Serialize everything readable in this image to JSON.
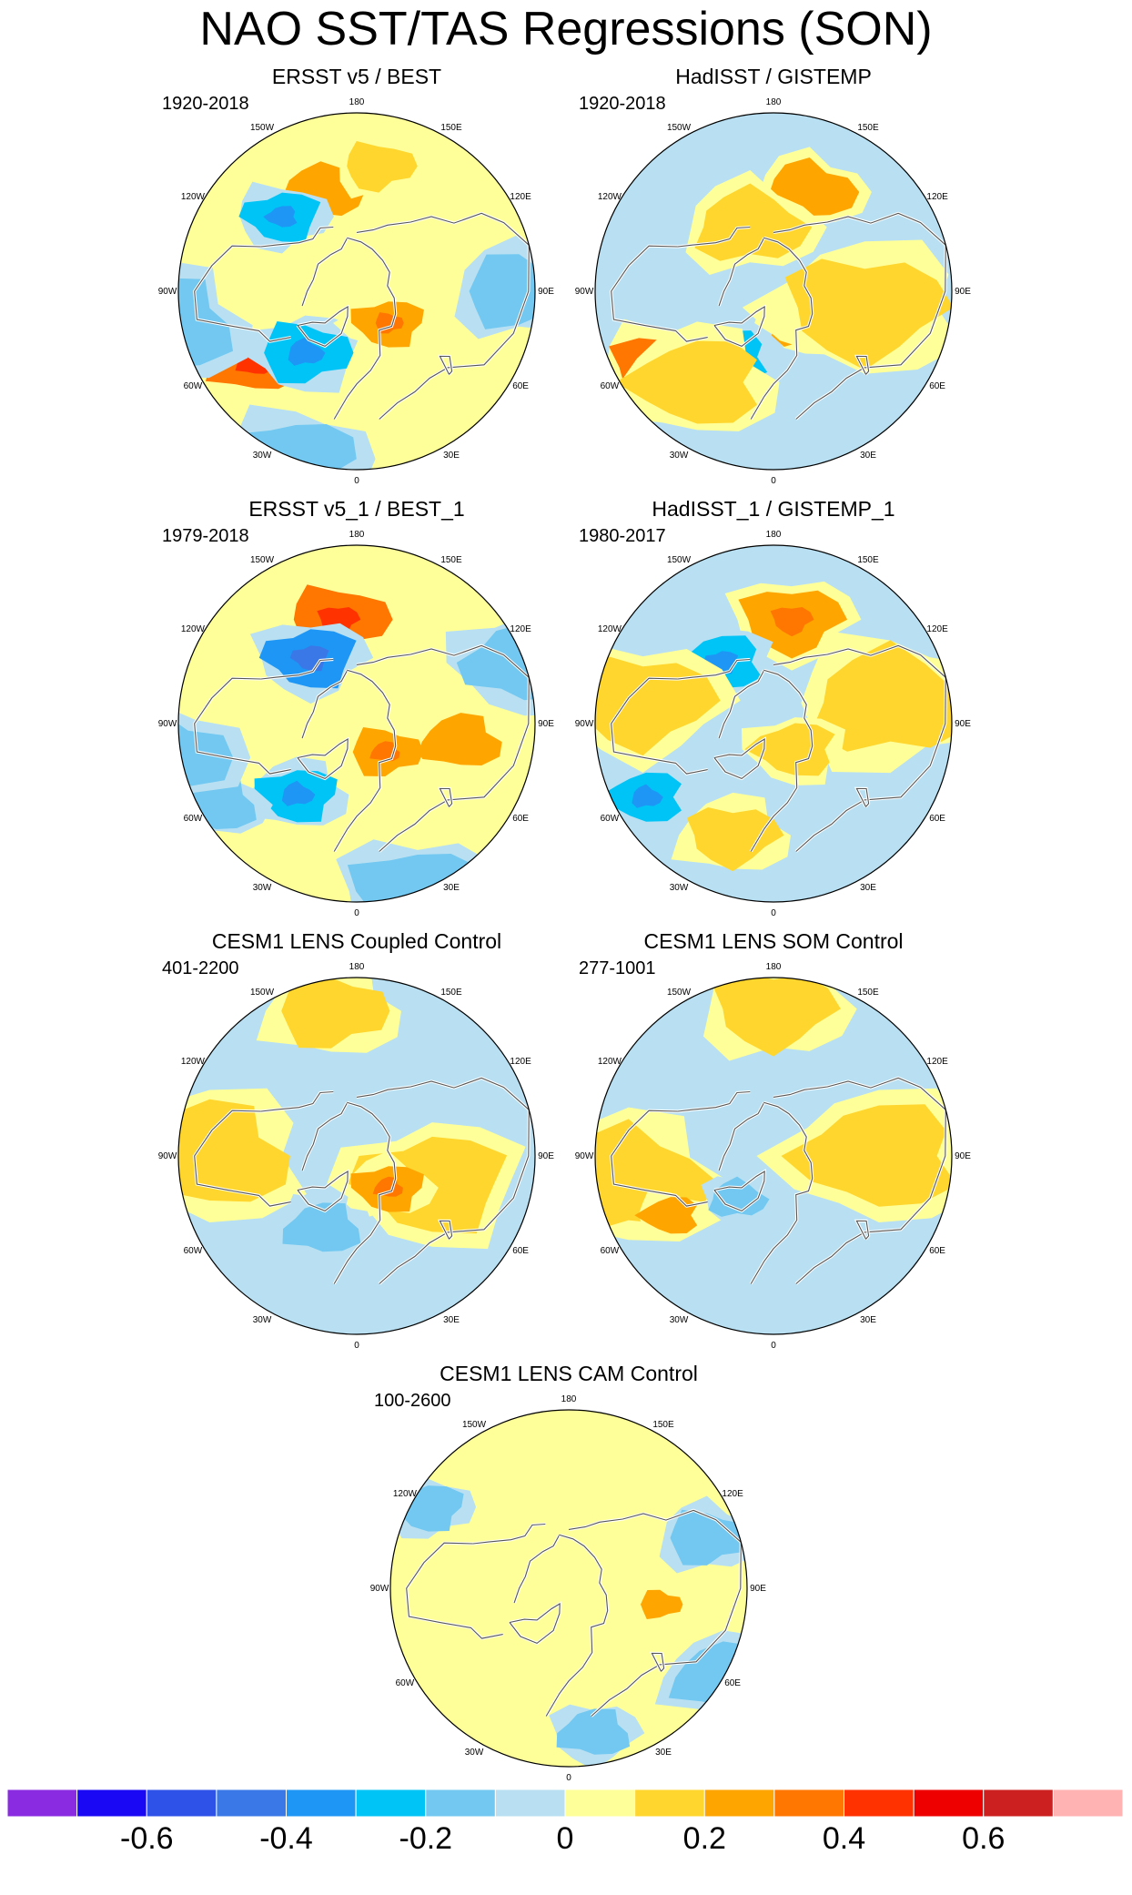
{
  "title": "NAO SST/TAS Regressions (SON)",
  "longitude_labels": [
    "180",
    "150E",
    "120E",
    "90E",
    "60E",
    "30E",
    "0",
    "30W",
    "60W",
    "90W",
    "120W",
    "150W"
  ],
  "colors": {
    "land_outline": "#555555",
    "frame": "#000000",
    "background_neutral_pos": "#ffff99",
    "background_neutral_neg": "#b8e0f2"
  },
  "chart_data": {
    "type": "heatmap",
    "projection": "north polar stereographic",
    "panels": [
      {
        "title": "ERSST v5 / BEST",
        "period": "1920-2018",
        "dominant_sign": "positive",
        "features": [
          {
            "lon": 200,
            "lat": 45,
            "value": 0.22,
            "size": 1.0
          },
          {
            "lon": 170,
            "lat": 37,
            "value": 0.18,
            "size": 0.8
          },
          {
            "lon": 225,
            "lat": 45,
            "value": -0.25,
            "size": 0.9
          },
          {
            "lon": 305,
            "lat": 38,
            "value": 0.3,
            "size": 1.2
          },
          {
            "lon": 320,
            "lat": 55,
            "value": -0.3,
            "size": 1.2
          },
          {
            "lon": 45,
            "lat": 70,
            "value": 0.25,
            "size": 0.8
          },
          {
            "lon": 280,
            "lat": 15,
            "value": -0.12,
            "size": 2.2
          },
          {
            "lon": 90,
            "lat": 25,
            "value": -0.12,
            "size": 1.6
          },
          {
            "lon": 340,
            "lat": 20,
            "value": -0.12,
            "size": 1.8
          }
        ]
      },
      {
        "title": "HadISST / GISTEMP",
        "period": "1920-2018",
        "dominant_sign": "negative",
        "features": [
          {
            "lon": 160,
            "lat": 45,
            "value": 0.2,
            "size": 1.2
          },
          {
            "lon": 305,
            "lat": 35,
            "value": 0.3,
            "size": 1.5
          },
          {
            "lon": 325,
            "lat": 55,
            "value": -0.25,
            "size": 1.0
          },
          {
            "lon": 45,
            "lat": 70,
            "value": 0.2,
            "size": 0.8
          },
          {
            "lon": 80,
            "lat": 50,
            "value": 0.12,
            "size": 2.6
          },
          {
            "lon": 320,
            "lat": 40,
            "value": 0.12,
            "size": 2.0
          },
          {
            "lon": 200,
            "lat": 60,
            "value": 0.12,
            "size": 1.6
          }
        ]
      },
      {
        "title": "ERSST v5_1 / BEST_1",
        "period": "1979-2018",
        "dominant_sign": "positive",
        "features": [
          {
            "lon": 190,
            "lat": 45,
            "value": 0.3,
            "size": 1.4
          },
          {
            "lon": 215,
            "lat": 55,
            "value": -0.35,
            "size": 1.2
          },
          {
            "lon": 80,
            "lat": 45,
            "value": 0.22,
            "size": 1.0
          },
          {
            "lon": 45,
            "lat": 72,
            "value": 0.28,
            "size": 0.8
          },
          {
            "lon": 320,
            "lat": 50,
            "value": -0.25,
            "size": 1.0
          },
          {
            "lon": 300,
            "lat": 25,
            "value": -0.2,
            "size": 1.0
          },
          {
            "lon": 280,
            "lat": 15,
            "value": -0.12,
            "size": 2.0
          },
          {
            "lon": 20,
            "lat": 20,
            "value": -0.12,
            "size": 2.0
          },
          {
            "lon": 110,
            "lat": 20,
            "value": -0.12,
            "size": 1.8
          }
        ]
      },
      {
        "title": "HadISST_1 / GISTEMP_1",
        "period": "1980-2017",
        "dominant_sign": "negative",
        "features": [
          {
            "lon": 170,
            "lat": 45,
            "value": 0.25,
            "size": 1.4
          },
          {
            "lon": 220,
            "lat": 55,
            "value": -0.3,
            "size": 1.0
          },
          {
            "lon": 80,
            "lat": 55,
            "value": 0.2,
            "size": 0.8
          },
          {
            "lon": 340,
            "lat": 40,
            "value": 0.15,
            "size": 1.2
          },
          {
            "lon": 300,
            "lat": 30,
            "value": -0.25,
            "size": 0.9
          },
          {
            "lon": 100,
            "lat": 40,
            "value": 0.12,
            "size": 2.6
          },
          {
            "lon": 260,
            "lat": 35,
            "value": 0.12,
            "size": 2.2
          },
          {
            "lon": 40,
            "lat": 75,
            "value": 0.15,
            "size": 1.0
          }
        ]
      },
      {
        "title": "CESM1 LENS Coupled Control",
        "period": "401-2200",
        "dominant_sign": "negative",
        "features": [
          {
            "lon": 70,
            "lat": 55,
            "value": 0.12,
            "size": 2.4
          },
          {
            "lon": 270,
            "lat": 30,
            "value": 0.12,
            "size": 2.6
          },
          {
            "lon": 190,
            "lat": 30,
            "value": 0.12,
            "size": 1.6
          },
          {
            "lon": 45,
            "lat": 70,
            "value": 0.25,
            "size": 0.8
          },
          {
            "lon": 335,
            "lat": 55,
            "value": -0.2,
            "size": 0.9
          }
        ]
      },
      {
        "title": "CESM1 LENS SOM Control",
        "period": "277-1001",
        "dominant_sign": "negative",
        "features": [
          {
            "lon": 90,
            "lat": 45,
            "value": 0.12,
            "size": 2.6
          },
          {
            "lon": 280,
            "lat": 30,
            "value": 0.12,
            "size": 2.6
          },
          {
            "lon": 180,
            "lat": 30,
            "value": 0.12,
            "size": 1.8
          },
          {
            "lon": 300,
            "lat": 40,
            "value": 0.22,
            "size": 0.5
          },
          {
            "lon": 320,
            "lat": 65,
            "value": -0.2,
            "size": 0.5
          }
        ]
      },
      {
        "title": "CESM1 LENS CAM Control",
        "period": "100-2600",
        "dominant_sign": "positive",
        "features": [
          {
            "lon": 60,
            "lat": 20,
            "value": -0.12,
            "size": 1.4
          },
          {
            "lon": 110,
            "lat": 30,
            "value": -0.12,
            "size": 1.0
          },
          {
            "lon": 240,
            "lat": 25,
            "value": -0.12,
            "size": 0.8
          },
          {
            "lon": 10,
            "lat": 30,
            "value": -0.12,
            "size": 0.8
          },
          {
            "lon": 80,
            "lat": 50,
            "value": 0.22,
            "size": 0.2
          }
        ]
      }
    ],
    "colorbar": {
      "levels": [
        -0.7,
        -0.6,
        -0.5,
        -0.4,
        -0.3,
        -0.2,
        -0.1,
        0,
        0.1,
        0.2,
        0.3,
        0.4,
        0.5,
        0.6,
        0.7
      ],
      "colors": [
        "#8a2be2",
        "#1a08f5",
        "#2e52e8",
        "#3a78e8",
        "#1e96f5",
        "#00c4f6",
        "#72c8f0",
        "#b8e0f2",
        "#ffff99",
        "#ffd62e",
        "#ffa500",
        "#ff7600",
        "#ff3200",
        "#ee0000",
        "#cc2020",
        "#ffb3b3"
      ],
      "tick_labels": [
        "-0.6",
        "-0.4",
        "-0.2",
        "0",
        "0.2",
        "0.4",
        "0.6"
      ],
      "tick_values": [
        -0.6,
        -0.4,
        -0.2,
        0,
        0.2,
        0.4,
        0.6
      ]
    }
  }
}
